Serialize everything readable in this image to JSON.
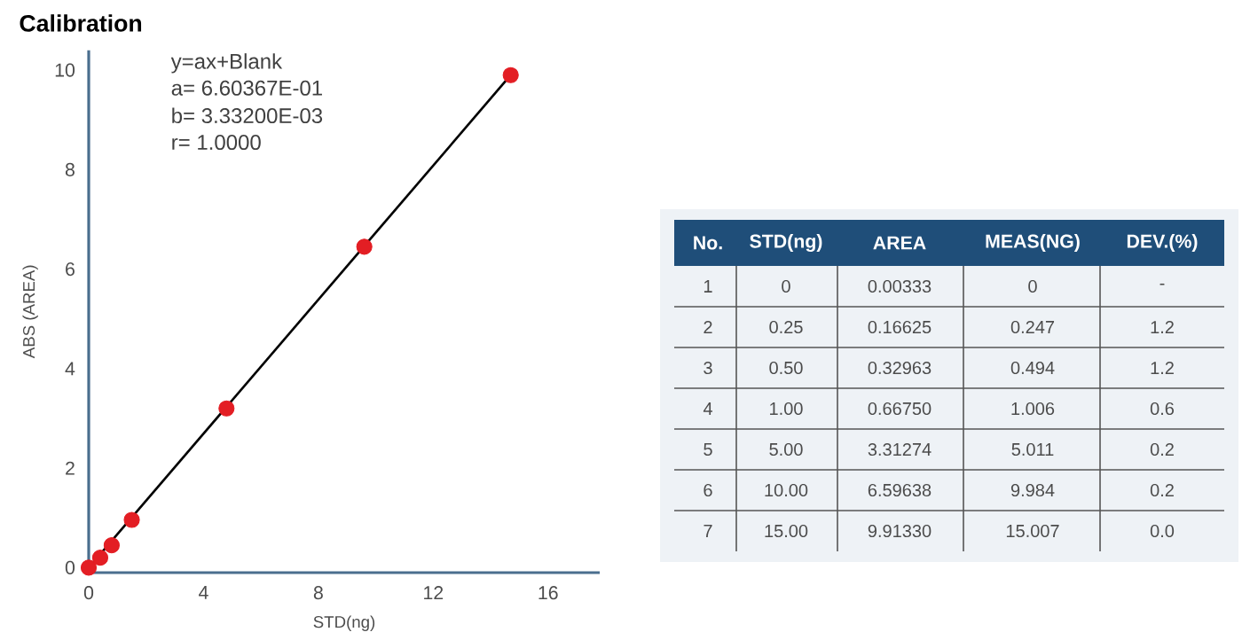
{
  "chart_data": {
    "type": "scatter",
    "title": "Calibration",
    "xlabel": "STD(ng)",
    "ylabel": "ABS (AREA)",
    "xlim": [
      0,
      17.8
    ],
    "ylim": [
      -0.1,
      10.4
    ],
    "xticks": [
      0,
      4,
      8,
      12,
      16
    ],
    "yticks": [
      0,
      2,
      4,
      6,
      8,
      10
    ],
    "grid": false,
    "series": [
      {
        "type": "line",
        "color": "#000000",
        "x": [
          0,
          14.7
        ],
        "values": [
          0,
          9.9
        ]
      },
      {
        "marker": "circle",
        "color": "#e31e24",
        "x": [
          0,
          0.4,
          0.8,
          1.5,
          4.8,
          9.6,
          14.7
        ],
        "values": [
          0,
          0.2,
          0.45,
          0.96,
          3.2,
          6.45,
          9.9
        ]
      }
    ],
    "annotations": [
      "y=ax+Blank",
      "a= 6.60367E-01",
      "b= 3.33200E-03",
      "r= 1.0000",
      "No.",
      "STD(ng)",
      "AREA",
      "MEAS(NG)",
      "DEV.(%)",
      "1",
      "0",
      "0.00333",
      "0",
      "-",
      "2",
      "0.25",
      "0.16625",
      "0.247",
      "1.2",
      "3",
      "0.50",
      "0.32963",
      "0.494",
      "1.2",
      "4",
      "1.00",
      "0.66750",
      "1.006",
      "0.6",
      "5",
      "5.00",
      "3.31274",
      "5.011",
      "0.2",
      "6",
      "10.00",
      "6.59638",
      "9.984",
      "0.2",
      "7",
      "15.00",
      "9.91330",
      "15.007",
      "0.0"
    ]
  }
}
